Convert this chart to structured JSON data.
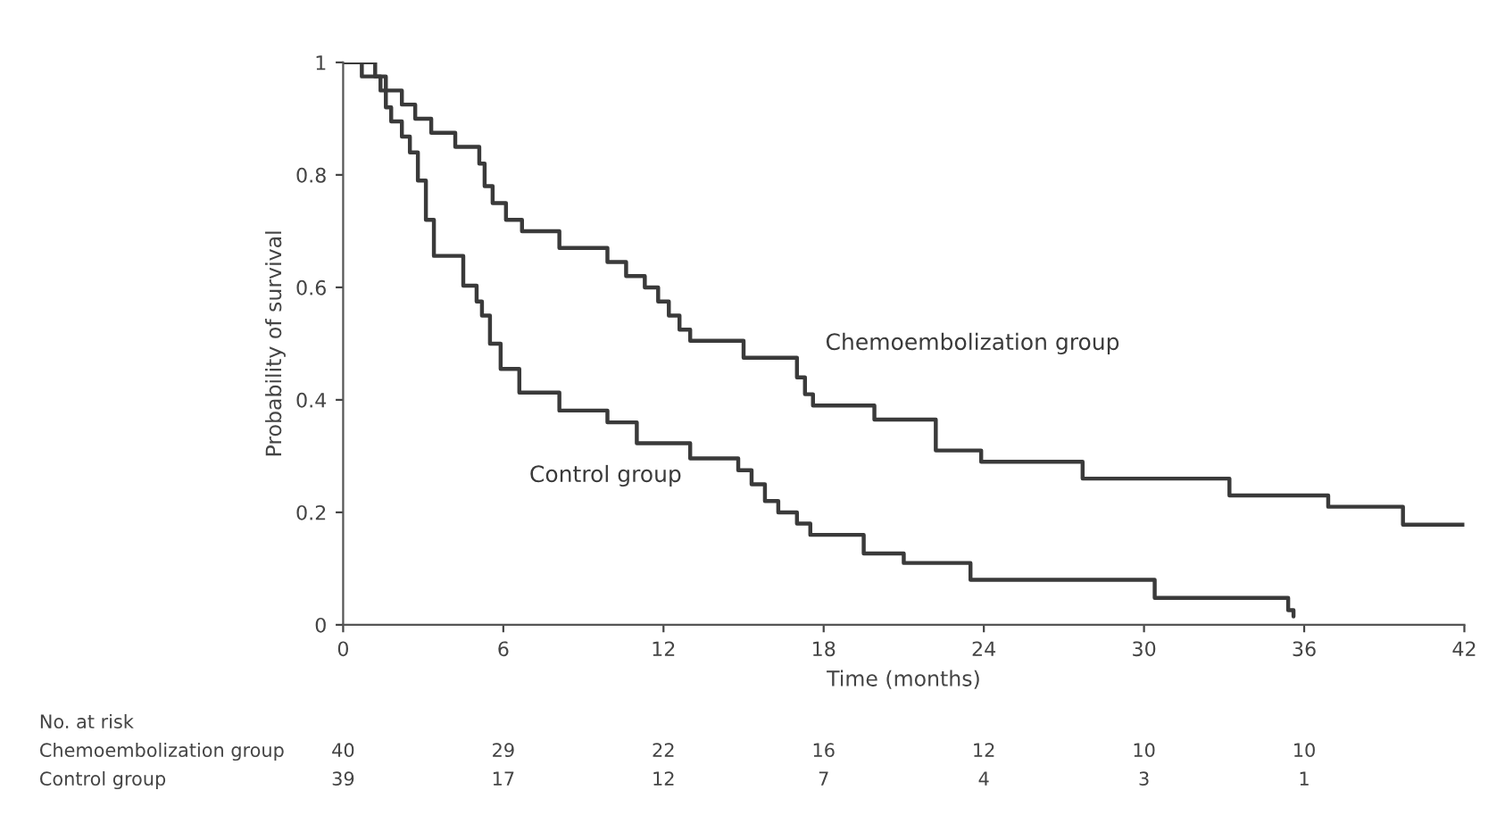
{
  "chart_data": {
    "type": "step",
    "xlabel": "Time (months)",
    "ylabel": "Probability of survival",
    "xlim": [
      0,
      42
    ],
    "xticks": [
      0,
      6,
      12,
      18,
      24,
      30,
      36,
      42
    ],
    "ylim": [
      0,
      1
    ],
    "yticks": [
      0,
      0.2,
      0.4,
      0.6,
      0.8,
      1
    ],
    "grid": false,
    "legend": false,
    "line_style": "solid",
    "marker": "none",
    "series": [
      {
        "name": "Chemoembolization group",
        "color": "#3a3a3a",
        "x": [
          0,
          0.7,
          1.6,
          2.2,
          2.7,
          3.3,
          4.2,
          5.1,
          5.3,
          5.6,
          6.1,
          6.7,
          8.1,
          9.9,
          10.6,
          11.3,
          11.8,
          12.2,
          12.6,
          13.0,
          15.0,
          17.0,
          17.3,
          17.6,
          19.9,
          22.2,
          23.9,
          27.7,
          33.2,
          36.9,
          39.7,
          42
        ],
        "values": [
          1.0,
          0.975,
          0.95,
          0.925,
          0.9,
          0.875,
          0.85,
          0.82,
          0.78,
          0.75,
          0.72,
          0.7,
          0.67,
          0.645,
          0.62,
          0.6,
          0.575,
          0.55,
          0.525,
          0.505,
          0.475,
          0.44,
          0.41,
          0.39,
          0.365,
          0.31,
          0.29,
          0.26,
          0.23,
          0.21,
          0.178,
          0.178
        ]
      },
      {
        "name": "Control group",
        "color": "#3a3a3a",
        "x": [
          0,
          1.2,
          1.4,
          1.6,
          1.8,
          2.2,
          2.5,
          2.8,
          3.1,
          3.4,
          4.5,
          5.0,
          5.2,
          5.5,
          5.9,
          6.6,
          8.1,
          9.9,
          11.0,
          13.0,
          14.8,
          15.3,
          15.8,
          16.3,
          17.0,
          17.5,
          19.5,
          21.0,
          23.5,
          30.4,
          35.4,
          35.6
        ],
        "values": [
          1.0,
          0.975,
          0.95,
          0.92,
          0.895,
          0.868,
          0.84,
          0.79,
          0.72,
          0.656,
          0.603,
          0.575,
          0.55,
          0.5,
          0.455,
          0.413,
          0.381,
          0.36,
          0.323,
          0.296,
          0.275,
          0.25,
          0.22,
          0.2,
          0.18,
          0.16,
          0.127,
          0.11,
          0.08,
          0.048,
          0.026,
          0.015
        ]
      }
    ],
    "annotations": [
      "No. at risk",
      "Chemoembolization group",
      "40",
      "29",
      "22",
      "16",
      "12",
      "10",
      "10",
      "Control group",
      "39",
      "17",
      "12",
      "7",
      "4",
      "3",
      "1"
    ]
  }
}
